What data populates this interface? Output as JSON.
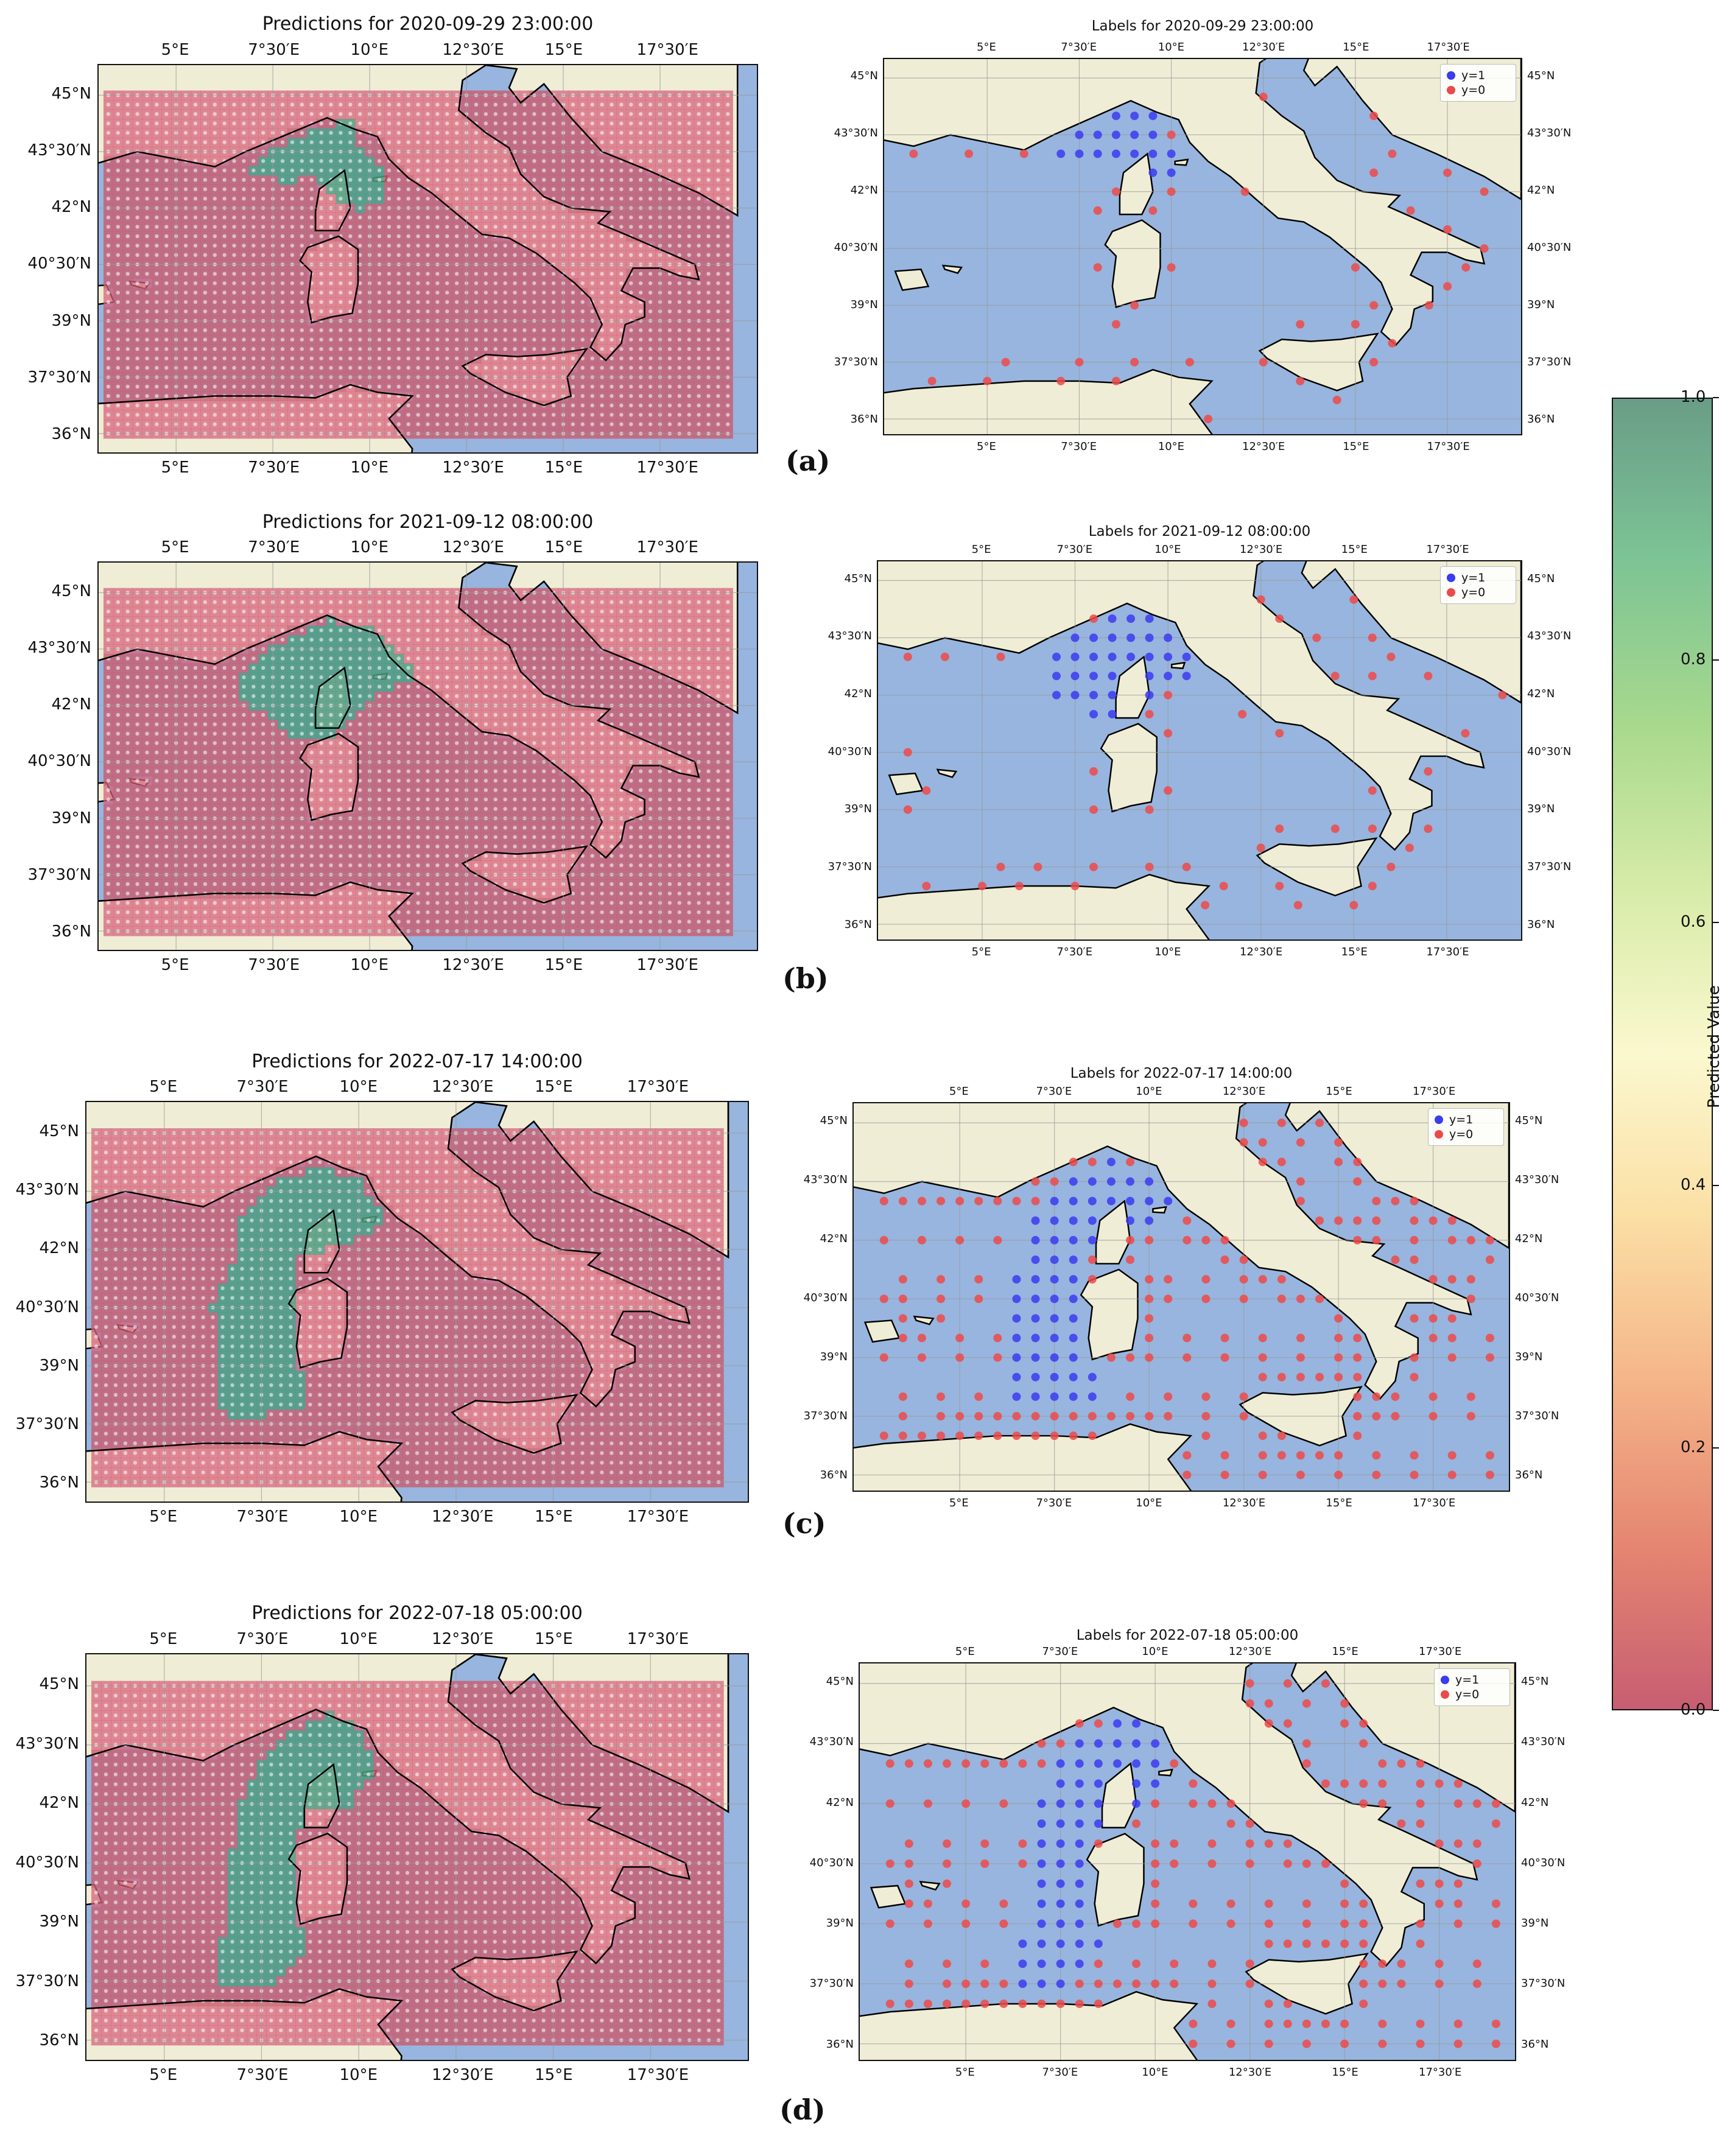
{
  "panels": [
    {
      "id": "a",
      "sublabel": "(a)",
      "pred_title": "Predictions for 2020-09-29 23:00:00",
      "label_title": "Labels for 2020-09-29 23:00:00"
    },
    {
      "id": "b",
      "sublabel": "(b)",
      "pred_title": "Predictions for 2021-09-12 08:00:00",
      "label_title": "Labels for 2021-09-12 08:00:00"
    },
    {
      "id": "c",
      "sublabel": "(c)",
      "pred_title": "Predictions for 2022-07-17 14:00:00",
      "label_title": "Labels for 2022-07-17 14:00:00"
    },
    {
      "id": "d",
      "sublabel": "(d)",
      "pred_title": "Predictions for 2022-07-18 05:00:00",
      "label_title": "Labels for 2022-07-18 05:00:00"
    }
  ],
  "lon_ticks": [
    "5°E",
    "7°30′E",
    "10°E",
    "12°30′E",
    "15°E",
    "17°30′E"
  ],
  "lat_ticks": [
    "45°N",
    "43°30′N",
    "42°N",
    "40°30′N",
    "39°N",
    "37°30′N",
    "36°N"
  ],
  "legend": {
    "y1": "y=1",
    "y0": "y=0"
  },
  "colorbar": {
    "label": "Predicted Value",
    "ticks": [
      "1.0",
      "0.8",
      "0.6",
      "0.4",
      "0.2",
      "0.0"
    ],
    "range": [
      0,
      1
    ]
  },
  "colors": {
    "sea": "#97b5de",
    "land": "#efedd5",
    "pred_low": "#c75e72",
    "pred_high": "#4f9a80",
    "dot_y1": "#3b3bf0",
    "dot_y0": "#ec4a4a"
  }
}
